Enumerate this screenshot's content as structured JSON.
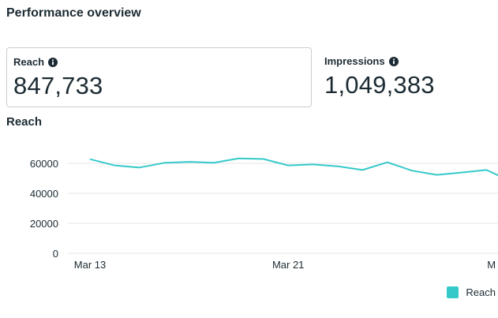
{
  "header": {
    "title": "Performance overview"
  },
  "metrics": [
    {
      "label": "Reach",
      "value": "847,733",
      "selected": true
    },
    {
      "label": "Impressions",
      "value": "1,049,383",
      "selected": false
    }
  ],
  "chart_section": {
    "title": "Reach"
  },
  "chart_data": {
    "type": "line",
    "series": [
      {
        "name": "Reach",
        "color": "#36c9c9",
        "values": [
          62800,
          58600,
          57200,
          60300,
          61000,
          60400,
          63300,
          62900,
          58600,
          59300,
          58000,
          55600,
          60700,
          55100,
          52300,
          53900,
          55600,
          47900
        ]
      }
    ],
    "x_ticks": [
      "Mar 13",
      "Mar 21",
      "M"
    ],
    "y_ticks": [
      "0",
      "20000",
      "40000",
      "60000"
    ],
    "ylim": [
      0,
      70000
    ],
    "grid": true,
    "legend_position": "bottom-right"
  },
  "colors": {
    "accent": "#36c9c9",
    "grid": "#e4e6eb",
    "text": "#1c2b33",
    "card_border": "#c9ced3"
  },
  "icons": {
    "info": "info-circle-icon"
  }
}
